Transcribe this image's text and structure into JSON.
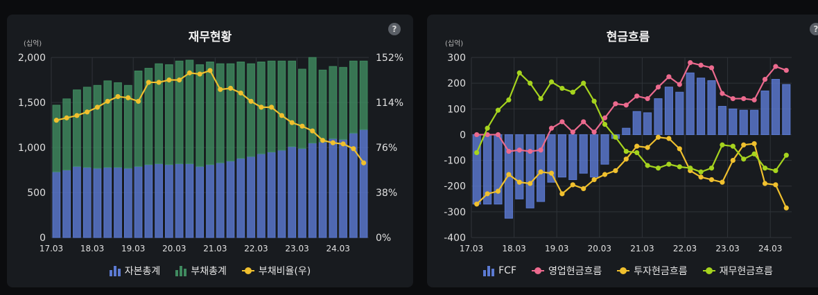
{
  "left_panel": {
    "title": "재무현황",
    "unit": "(십억)",
    "help": "?",
    "legend": [
      {
        "label": "자본총계",
        "color": "#5b7ad2",
        "kind": "bar"
      },
      {
        "label": "부채총계",
        "color": "#3f8a5f",
        "kind": "bar"
      },
      {
        "label": "부채비율(우)",
        "color": "#f0c02e",
        "kind": "line"
      }
    ]
  },
  "right_panel": {
    "title": "현금흐름",
    "unit": "(십억)",
    "help": "?",
    "legend": [
      {
        "label": "FCF",
        "color": "#5b7ad2",
        "kind": "bar"
      },
      {
        "label": "영업현금흐름",
        "color": "#ec6a8e",
        "kind": "line"
      },
      {
        "label": "투자현금흐름",
        "color": "#f0c02e",
        "kind": "line"
      },
      {
        "label": "재무현금흐름",
        "color": "#a6d41e",
        "kind": "line"
      }
    ]
  },
  "chart_data": [
    {
      "type": "bar",
      "title": "재무현황",
      "unit": "(십억)",
      "x_tick_labels": [
        "17.03",
        "18.03",
        "19.03",
        "20.03",
        "21.03",
        "22.03",
        "23.03",
        "24.03"
      ],
      "y_ticks": [
        "0",
        "500",
        "1,000",
        "1,500",
        "2,000"
      ],
      "y2_ticks": [
        "0%",
        "38%",
        "76%",
        "114%",
        "152%"
      ],
      "ylim": [
        0,
        2000
      ],
      "y2lim": [
        0,
        152
      ],
      "stacked": true,
      "grid": true,
      "legend_position": "bottom",
      "series": [
        {
          "name": "자본총계",
          "color": "#5b7ad2",
          "kind": "bar",
          "values": [
            730,
            750,
            790,
            780,
            770,
            780,
            780,
            770,
            790,
            810,
            820,
            810,
            820,
            820,
            790,
            810,
            830,
            850,
            880,
            900,
            930,
            950,
            970,
            1010,
            990,
            1050,
            1060,
            1100,
            1090,
            1160,
            1200
          ]
        },
        {
          "name": "부채총계",
          "color": "#3f8a5f",
          "kind": "bar",
          "values": [
            740,
            790,
            850,
            890,
            920,
            960,
            940,
            920,
            1060,
            1070,
            1110,
            1110,
            1140,
            1150,
            1130,
            1140,
            1100,
            1080,
            1070,
            1030,
            1020,
            1010,
            990,
            950,
            880,
            950,
            800,
            800,
            800,
            800,
            760
          ]
        },
        {
          "name": "부채비율(우)",
          "color": "#f0c02e",
          "kind": "line",
          "axis": "right",
          "values": [
            99,
            101,
            103,
            106,
            110,
            115,
            119,
            118,
            115,
            131,
            131,
            133,
            133,
            139,
            138,
            141,
            125,
            126,
            122,
            115,
            110,
            110,
            103,
            97,
            94,
            90,
            82,
            80,
            79,
            75,
            63
          ]
        }
      ]
    },
    {
      "type": "bar",
      "title": "현금흐름",
      "unit": "(십억)",
      "x_tick_labels": [
        "17.03",
        "18.03",
        "19.03",
        "20.03",
        "21.03",
        "22.03",
        "23.03",
        "24.03"
      ],
      "y_ticks": [
        "-400",
        "-300",
        "-200",
        "-100",
        "0",
        "100",
        "200",
        "300"
      ],
      "ylim": [
        -400,
        300
      ],
      "grid": true,
      "legend_position": "bottom",
      "series": [
        {
          "name": "FCF",
          "color": "#5b7ad2",
          "kind": "bar",
          "values": [
            -270,
            -270,
            -270,
            -325,
            -250,
            -285,
            -260,
            -185,
            -165,
            -175,
            -150,
            -165,
            -115,
            -15,
            25,
            90,
            85,
            140,
            185,
            165,
            240,
            220,
            210,
            110,
            100,
            95,
            95,
            170,
            215,
            195
          ]
        },
        {
          "name": "영업현금흐름",
          "color": "#ec6a8e",
          "kind": "line",
          "values": [
            0,
            0,
            0,
            -65,
            -60,
            -65,
            -60,
            25,
            50,
            10,
            50,
            10,
            65,
            120,
            115,
            150,
            140,
            185,
            225,
            195,
            280,
            270,
            260,
            160,
            140,
            140,
            135,
            215,
            265,
            250
          ]
        },
        {
          "name": "투자현금흐름",
          "color": "#f0c02e",
          "kind": "line",
          "values": [
            -270,
            -230,
            -220,
            -155,
            -185,
            -190,
            -145,
            -150,
            -230,
            -195,
            -210,
            -175,
            -155,
            -140,
            -95,
            -45,
            -50,
            -10,
            -15,
            -55,
            -140,
            -165,
            -175,
            -185,
            -100,
            -40,
            -35,
            -190,
            -195,
            -285
          ]
        },
        {
          "name": "재무현금흐름",
          "color": "#a6d41e",
          "kind": "line",
          "values": [
            -70,
            25,
            95,
            135,
            240,
            200,
            140,
            205,
            180,
            165,
            200,
            130,
            40,
            -10,
            -65,
            -70,
            -120,
            -130,
            -115,
            -125,
            -130,
            -145,
            -130,
            -40,
            -45,
            -95,
            -75,
            -130,
            -140,
            -80
          ]
        }
      ]
    }
  ]
}
